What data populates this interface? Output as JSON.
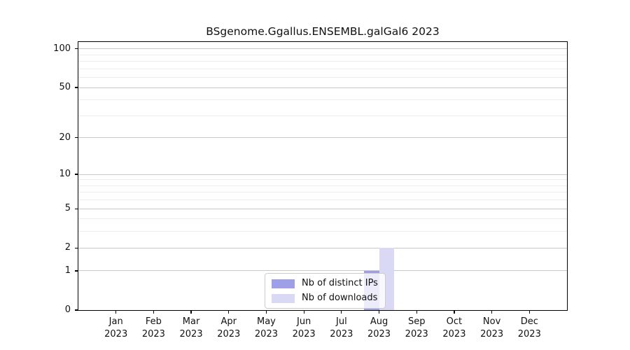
{
  "chart_data": {
    "type": "bar",
    "title": "BSgenome.Ggallus.ENSEMBL.galGal6 2023",
    "xlabel": "",
    "ylabel": "",
    "categories": [
      "Jan\n2023",
      "Feb\n2023",
      "Mar\n2023",
      "Apr\n2023",
      "May\n2023",
      "Jun\n2023",
      "Jul\n2023",
      "Aug\n2023",
      "Sep\n2023",
      "Oct\n2023",
      "Nov\n2023",
      "Dec\n2023"
    ],
    "series": [
      {
        "name": "Nb of distinct IPs",
        "color": "#9f9fe8",
        "values": [
          0,
          0,
          0,
          0,
          0,
          0,
          0,
          1,
          0,
          0,
          0,
          0
        ]
      },
      {
        "name": "Nb of downloads",
        "color": "#d9d9f6",
        "values": [
          0,
          0,
          0,
          0,
          0,
          0,
          0,
          2,
          0,
          0,
          0,
          0
        ]
      }
    ],
    "yscale": "log1p",
    "yticks_major": [
      0,
      1,
      2,
      5,
      10,
      20,
      50,
      100
    ],
    "yticks_minor": [
      3,
      4,
      6,
      7,
      8,
      9,
      30,
      40,
      60,
      70,
      80,
      90
    ],
    "y_max": 113,
    "grid": "horizontal",
    "legend_position": "lower-center-inside",
    "colors": {
      "axis": "#000000",
      "grid_major": "#c8c8c8",
      "grid_minor": "#ededed",
      "background": "#ffffff",
      "legend_border": "#cccccc"
    }
  }
}
